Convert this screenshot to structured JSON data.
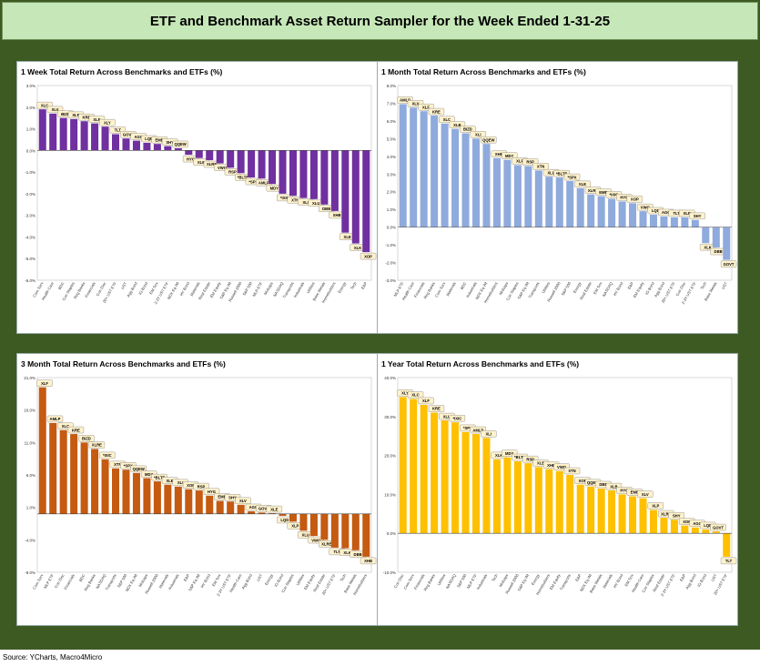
{
  "header": {
    "title": "ETF and Benchmark Asset Return Sampler for the Week Ended 1-31-25"
  },
  "source": "Source: YCharts, Macro4Micro",
  "chart_data": [
    {
      "type": "bar",
      "title": "1 Week Total Return Across Benchmarks and ETFs (%)",
      "color": "#7030a0",
      "ylim": [
        -6.0,
        3.0
      ],
      "yticks": [
        3.0,
        2.0,
        1.0,
        0.0,
        -1.0,
        -2.0,
        -3.0,
        -4.0,
        -5.0,
        -6.0
      ],
      "ytick_labels": [
        "3.0%",
        "2.0%",
        "1.0%",
        "0.0%",
        "-1.0%",
        "-2.0%",
        "-3.0%",
        "-4.0%",
        "-5.0%",
        "-6.0%"
      ],
      "tickers": [
        "XLC",
        "XLV",
        "BIZD",
        "XLP",
        "KRE",
        "XLF",
        "XLY",
        "TLT",
        "GOVT",
        "AGG",
        "LQD",
        "EMB",
        "SHY",
        "QQEW",
        "HYG",
        "XLB",
        "XLRE",
        "VWO",
        "RSP",
        "*BLTE",
        "*SPX",
        "AMLP",
        "MDY",
        "*IXIC",
        "XTN",
        "XLI",
        "XLU",
        "DBB",
        "XHB",
        "XLE",
        "XLK",
        "XOP"
      ],
      "categories": [
        "Com Serv",
        "Health Care",
        "BDC",
        "Con Staples",
        "Reg Banks",
        "Financials",
        "Con Disc",
        "20+ UST ETF",
        "UST",
        "Agg Bond",
        "IG Bond",
        "EM Sov",
        "2-3Y UST ETF",
        "NDX Eq Wt",
        "HY Bond",
        "Materials",
        "Real Estate",
        "EM Equity",
        "S&P Eq Wt",
        "Russell 2000",
        "S&P 500",
        "MLP ETF",
        "Midcaps",
        "NASDAQ",
        "Transports",
        "Industrials",
        "Utilities",
        "Base Metals",
        "Homebuilders",
        "Energy",
        "Tech",
        "E&P"
      ],
      "values": [
        1.9,
        1.7,
        1.5,
        1.45,
        1.35,
        1.25,
        1.1,
        0.75,
        0.55,
        0.45,
        0.35,
        0.3,
        0.2,
        0.1,
        -0.2,
        -0.35,
        -0.45,
        -0.6,
        -0.8,
        -1.05,
        -1.25,
        -1.3,
        -1.55,
        -2.0,
        -2.1,
        -2.2,
        -2.25,
        -2.5,
        -2.8,
        -3.8,
        -4.3,
        -4.7
      ]
    },
    {
      "type": "bar",
      "title": "1 Month Total Return Across Benchmarks and ETFs (%)",
      "color": "#8faadc",
      "ylim": [
        -3.0,
        8.0
      ],
      "yticks": [
        8.0,
        7.0,
        6.0,
        5.0,
        4.0,
        3.0,
        2.0,
        1.0,
        0.0,
        -1.0,
        -2.0,
        -3.0
      ],
      "ytick_labels": [
        "8.0%",
        "7.0%",
        "6.0%",
        "5.0%",
        "4.0%",
        "3.0%",
        "2.0%",
        "1.0%",
        "0.0%",
        "-1.0%",
        "-2.0%",
        "-3.0%"
      ],
      "tickers": [
        "AMLP",
        "XLV",
        "XLF",
        "KRE",
        "XLC",
        "XLB",
        "BIZD",
        "XLI",
        "QQEW",
        "XHB",
        "MDY",
        "XLP",
        "RSP",
        "XTN",
        "XLU",
        "*BLTE",
        "*SPX",
        "XLE",
        "XLRE",
        "EMB",
        "*IXIC",
        "HYG",
        "XOP",
        "VWO",
        "LQD",
        "AGG",
        "TLT",
        "XLP",
        "SHY",
        "XLK",
        "DBB",
        "GOVT"
      ],
      "categories": [
        "MLP ETF",
        "Health Care",
        "Financials",
        "Reg Banks",
        "Com Serv",
        "Materials",
        "BDC",
        "Industrials",
        "NDX Eq Wt",
        "Homebuilders",
        "Midcaps",
        "Con Staples",
        "S&P Eq Wt",
        "Transports",
        "Utilities",
        "Russell 2000",
        "S&P 500",
        "Energy",
        "Real Estate",
        "EM Sov",
        "NASDAQ",
        "HY Bond",
        "E&P",
        "EM Equity",
        "IG Bond",
        "Agg Bond",
        "20+ UST ETF",
        "Con Disc",
        "2-3Y UST ETF",
        "Tech",
        "Base Metals",
        "UST"
      ],
      "values": [
        6.95,
        6.75,
        6.55,
        6.3,
        5.85,
        5.55,
        5.3,
        5.0,
        4.7,
        3.9,
        3.8,
        3.5,
        3.45,
        3.2,
        2.85,
        2.8,
        2.6,
        2.2,
        1.85,
        1.75,
        1.6,
        1.45,
        1.35,
        0.9,
        0.7,
        0.6,
        0.55,
        0.55,
        0.4,
        -0.9,
        -1.15,
        -1.85
      ]
    },
    {
      "type": "bar",
      "title": "3 Month Total Return Across Benchmarks and ETFs (%)",
      "color": "#c55a11",
      "ylim": [
        -9.0,
        21.0
      ],
      "yticks": [
        21.0,
        16.0,
        11.0,
        6.0,
        1.0,
        -4.0,
        -9.0
      ],
      "ytick_labels": [
        "21.0%",
        "16.0%",
        "11.0%",
        "6.0%",
        "1.0%",
        "-4.0%",
        "-9.0%"
      ],
      "tickers": [
        "XLF",
        "AMLP",
        "XLC",
        "KRE",
        "BIZD",
        "XLRE",
        "*IXIC",
        "XTN",
        "*SPX",
        "QQEW",
        "MDY",
        "*BLTE",
        "XLB",
        "XLI",
        "XOP",
        "RSP",
        "HYG",
        "EMB",
        "SHY",
        "XLV",
        "AGG",
        "GOVT",
        "XLE",
        "LQD",
        "XLP",
        "XLU",
        "VWO",
        "XLRE",
        "TLT",
        "XLK",
        "DBB",
        "XHB"
      ],
      "categories": [
        "Com Serv",
        "MLP ETF",
        "Con Disc",
        "Financials",
        "BDC",
        "Reg Banks",
        "NASDAQ",
        "Transports",
        "S&P 500",
        "NDX Eq Wt",
        "Midcaps",
        "Russell 2000",
        "Materials",
        "Industrials",
        "E&P",
        "S&P Eq Wt",
        "HY Bond",
        "EM Sov",
        "2-3Y UST ETF",
        "Health Care",
        "Agg Bond",
        "UST",
        "Energy",
        "IG Bond",
        "Con Staples",
        "Utilities",
        "EM Equity",
        "Real Estate",
        "20+ UST ETF",
        "Tech",
        "Base Metals",
        "Homebuilders"
      ],
      "values": [
        19.5,
        14.0,
        12.9,
        12.3,
        11.0,
        10.0,
        8.4,
        7.0,
        6.8,
        6.3,
        5.5,
        5.0,
        4.5,
        4.2,
        3.8,
        3.6,
        2.8,
        2.0,
        1.9,
        1.4,
        0.4,
        0.2,
        0.1,
        -0.3,
        -1.2,
        -2.6,
        -3.4,
        -4.0,
        -5.2,
        -5.3,
        -5.6,
        -6.6
      ]
    },
    {
      "type": "bar",
      "title": "1 Year Total Return Across Benchmarks and ETFs (%)",
      "color": "#ffc000",
      "ylim": [
        -10.0,
        40.0
      ],
      "yticks": [
        40.0,
        30.0,
        20.0,
        10.0,
        0.0,
        -10.0
      ],
      "ytick_labels": [
        "40.0%",
        "30.0%",
        "20.0%",
        "10.0%",
        "0.0%",
        "-10.0%"
      ],
      "tickers": [
        "XLY",
        "XLC",
        "XLF",
        "KRE",
        "XLU",
        "*IXIC",
        "*SPX",
        "AMLP",
        "XLI",
        "XLK",
        "MDY",
        "*BLTE",
        "RSP",
        "XLE",
        "XHB",
        "VWO",
        "XTN",
        "XOP",
        "QQEW",
        "DBB",
        "XLB",
        "HYG",
        "EMB",
        "XLV",
        "XLP",
        "XLRE",
        "SHY",
        "XOP",
        "AGG",
        "LQD",
        "GOVT",
        "TLT"
      ],
      "categories": [
        "Con Disc",
        "Com Serv",
        "Financials",
        "Reg Banks",
        "Utilities",
        "NASDAQ",
        "S&P 500",
        "MLP ETF",
        "Industrials",
        "Tech",
        "Midcaps",
        "Russell 2000",
        "S&P Eq Wt",
        "Energy",
        "Homebuilders",
        "EM Equity",
        "Transports",
        "E&P",
        "NDX Eq Wt",
        "Base Metals",
        "Materials",
        "HY Bond",
        "EM Sov",
        "Health Care",
        "Con Staples",
        "Real Estate",
        "2-3Y UST ETF",
        "E&P",
        "Agg Bond",
        "IG Bond",
        "UST",
        "20+ UST ETF"
      ],
      "values": [
        35.0,
        34.5,
        33.0,
        31.0,
        29.0,
        28.5,
        26.0,
        25.5,
        24.5,
        19.0,
        19.5,
        18.5,
        18.0,
        17.0,
        16.5,
        16.0,
        15.0,
        12.5,
        12.0,
        11.5,
        11.0,
        10.0,
        9.5,
        9.0,
        6.0,
        4.0,
        3.5,
        2.0,
        1.5,
        1.0,
        0.5,
        -6.0
      ]
    }
  ]
}
